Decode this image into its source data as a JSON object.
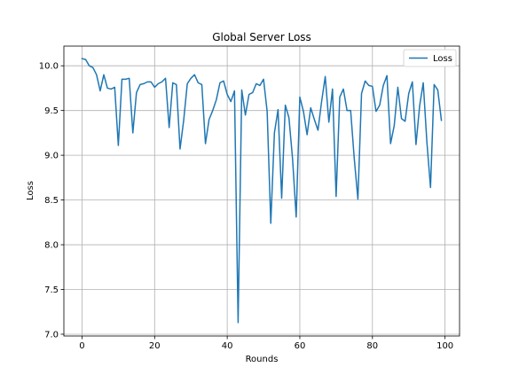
{
  "chart_data": {
    "type": "line",
    "title": "Global Server Loss",
    "xlabel": "Rounds",
    "ylabel": "Loss",
    "xlim": [
      -5,
      104
    ],
    "ylim": [
      6.98,
      10.22
    ],
    "xticks": [
      0,
      20,
      40,
      60,
      80,
      100
    ],
    "yticks": [
      7.0,
      7.5,
      8.0,
      8.5,
      9.0,
      9.5,
      10.0
    ],
    "ytick_labels": [
      "7.0",
      "7.5",
      "8.0",
      "8.5",
      "9.0",
      "9.5",
      "10.0"
    ],
    "xtick_labels": [
      "0",
      "20",
      "40",
      "60",
      "80",
      "100"
    ],
    "grid": true,
    "legend_position": "top-right",
    "colors": {
      "series": "#1f77b4"
    },
    "series": [
      {
        "name": "Loss",
        "x": [
          0,
          1,
          2,
          3,
          4,
          5,
          6,
          7,
          8,
          9,
          10,
          11,
          12,
          13,
          14,
          15,
          16,
          17,
          18,
          19,
          20,
          21,
          22,
          23,
          24,
          25,
          26,
          27,
          28,
          29,
          30,
          31,
          32,
          33,
          34,
          35,
          36,
          37,
          38,
          39,
          40,
          41,
          42,
          43,
          44,
          45,
          46,
          47,
          48,
          49,
          50,
          51,
          52,
          53,
          54,
          55,
          56,
          57,
          58,
          59,
          60,
          61,
          62,
          63,
          64,
          65,
          66,
          67,
          68,
          69,
          70,
          71,
          72,
          73,
          74,
          75,
          76,
          77,
          78,
          79,
          80,
          81,
          82,
          83,
          84,
          85,
          86,
          87,
          88,
          89,
          90,
          91,
          92,
          93,
          94,
          95,
          96,
          97,
          98,
          99
        ],
        "values": [
          10.08,
          10.07,
          10.0,
          9.98,
          9.9,
          9.72,
          9.9,
          9.75,
          9.74,
          9.76,
          9.11,
          9.85,
          9.85,
          9.86,
          9.25,
          9.7,
          9.79,
          9.8,
          9.82,
          9.82,
          9.76,
          9.8,
          9.82,
          9.86,
          9.31,
          9.81,
          9.79,
          9.07,
          9.39,
          9.8,
          9.86,
          9.9,
          9.81,
          9.79,
          9.13,
          9.4,
          9.5,
          9.62,
          9.81,
          9.83,
          9.68,
          9.6,
          9.72,
          7.13,
          9.73,
          9.45,
          9.68,
          9.7,
          9.8,
          9.78,
          9.85,
          9.49,
          8.24,
          9.25,
          9.51,
          8.52,
          9.56,
          9.42,
          8.96,
          8.31,
          9.65,
          9.49,
          9.23,
          9.53,
          9.4,
          9.28,
          9.6,
          9.88,
          9.37,
          9.74,
          8.54,
          9.65,
          9.74,
          9.5,
          9.5,
          8.96,
          8.51,
          9.69,
          9.83,
          9.78,
          9.77,
          9.49,
          9.56,
          9.78,
          9.89,
          9.13,
          9.33,
          9.76,
          9.41,
          9.38,
          9.69,
          9.82,
          9.12,
          9.55,
          9.81,
          9.15,
          8.64,
          9.79,
          9.73,
          9.39
        ]
      }
    ]
  }
}
